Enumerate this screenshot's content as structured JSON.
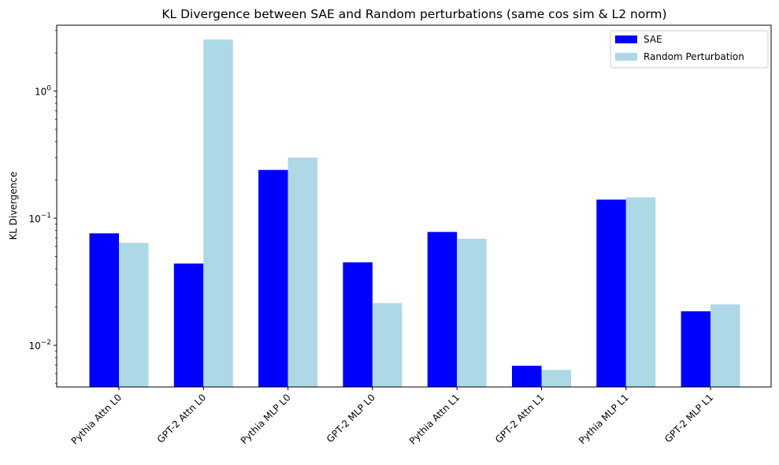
{
  "chart_data": {
    "type": "bar",
    "title": "KL Divergence between SAE and Random perturbations (same cos sim & L2 norm)",
    "xlabel": "",
    "ylabel": "KL Divergence",
    "yscale": "log",
    "ylim": [
      0.0047,
      3.3
    ],
    "yticks": [
      {
        "value": 0.01,
        "base": "10",
        "exp": "−2"
      },
      {
        "value": 0.1,
        "base": "10",
        "exp": "−1"
      },
      {
        "value": 1,
        "base": "10",
        "exp": "0"
      }
    ],
    "categories": [
      "Pythia Attn L0",
      "GPT-2 Attn L0",
      "Pythia MLP L0",
      "GPT-2 MLP L0",
      "Pythia Attn L1",
      "GPT-2 Attn L1",
      "Pythia MLP L1",
      "GPT-2 MLP L1"
    ],
    "series": [
      {
        "name": "SAE",
        "color": "#0000ff",
        "values": [
          0.076,
          0.044,
          0.24,
          0.045,
          0.078,
          0.0069,
          0.14,
          0.0185
        ]
      },
      {
        "name": "Random Perturbation",
        "color": "#add8e6",
        "values": [
          0.064,
          2.55,
          0.3,
          0.0215,
          0.069,
          0.0064,
          0.146,
          0.021
        ]
      }
    ],
    "legend": "top-right",
    "grid": false
  }
}
